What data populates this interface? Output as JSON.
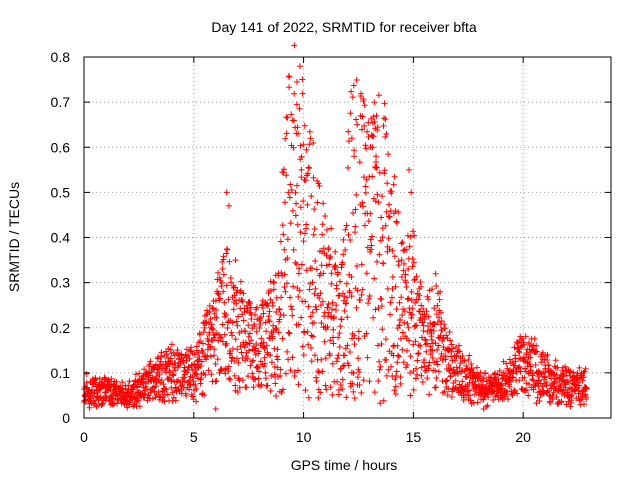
{
  "chart_data": {
    "type": "scatter",
    "title": "Day 141 of 2022, SRMTID for receiver bfta",
    "xlabel": "GPS time / hours",
    "ylabel": "SRMTID / TECUs",
    "xlim": [
      0,
      24
    ],
    "ylim": [
      0,
      0.8
    ],
    "grid": true,
    "x_ticks": [
      0,
      5,
      10,
      15,
      20
    ],
    "x_tick_labels": [
      "0",
      "5",
      "10",
      "15",
      "20"
    ],
    "y_ticks": [
      0,
      0.1,
      0.2,
      0.3,
      0.4,
      0.5,
      0.6,
      0.7,
      0.8
    ],
    "y_tick_labels": [
      "0",
      "0.1",
      "0.2",
      "0.3",
      "0.4",
      "0.5",
      "0.6",
      "0.7",
      "0.8"
    ],
    "marker": "plus",
    "marker_color": "#ff0000",
    "series": [
      {
        "name": "SRMTID",
        "points_description": "Dense scatter from 0 to ~22.9 h; envelope values in TECU",
        "envelope": [
          {
            "x": 0.0,
            "y": 0.06
          },
          {
            "x": 1.0,
            "y": 0.06
          },
          {
            "x": 2.0,
            "y": 0.05
          },
          {
            "x": 3.0,
            "y": 0.08
          },
          {
            "x": 4.0,
            "y": 0.1
          },
          {
            "x": 5.0,
            "y": 0.1
          },
          {
            "x": 5.5,
            "y": 0.15
          },
          {
            "x": 6.5,
            "y": 0.22
          },
          {
            "x": 7.0,
            "y": 0.18
          },
          {
            "x": 8.0,
            "y": 0.15
          },
          {
            "x": 8.8,
            "y": 0.2
          },
          {
            "x": 9.3,
            "y": 0.4
          },
          {
            "x": 9.7,
            "y": 0.5
          },
          {
            "x": 10.2,
            "y": 0.35
          },
          {
            "x": 11.0,
            "y": 0.25
          },
          {
            "x": 11.7,
            "y": 0.2
          },
          {
            "x": 12.3,
            "y": 0.45
          },
          {
            "x": 13.0,
            "y": 0.35
          },
          {
            "x": 13.5,
            "y": 0.4
          },
          {
            "x": 14.0,
            "y": 0.33
          },
          {
            "x": 14.5,
            "y": 0.22
          },
          {
            "x": 15.0,
            "y": 0.25
          },
          {
            "x": 15.5,
            "y": 0.15
          },
          {
            "x": 16.0,
            "y": 0.2
          },
          {
            "x": 16.5,
            "y": 0.12
          },
          {
            "x": 17.0,
            "y": 0.1
          },
          {
            "x": 18.0,
            "y": 0.07
          },
          {
            "x": 19.0,
            "y": 0.07
          },
          {
            "x": 20.0,
            "y": 0.12
          },
          {
            "x": 21.0,
            "y": 0.09
          },
          {
            "x": 22.0,
            "y": 0.07
          },
          {
            "x": 22.9,
            "y": 0.07
          }
        ],
        "spikes": [
          {
            "x": 6.5,
            "y": 0.5
          },
          {
            "x": 6.6,
            "y": 0.47
          },
          {
            "x": 6.9,
            "y": 0.35
          },
          {
            "x": 9.7,
            "y": 0.745
          },
          {
            "x": 9.7,
            "y": 0.695
          },
          {
            "x": 9.75,
            "y": 0.63
          },
          {
            "x": 9.9,
            "y": 0.55
          },
          {
            "x": 12.2,
            "y": 0.62
          },
          {
            "x": 12.3,
            "y": 0.58
          },
          {
            "x": 13.3,
            "y": 0.58
          },
          {
            "x": 14.8,
            "y": 0.55
          },
          {
            "x": 14.9,
            "y": 0.5
          }
        ],
        "lows": [
          {
            "x": 6.0,
            "y": 0.02
          },
          {
            "x": 8.5,
            "y": 0.06
          },
          {
            "x": 11.8,
            "y": 0.115
          },
          {
            "x": 14.2,
            "y": 0.07
          },
          {
            "x": 18.2,
            "y": 0.02
          }
        ]
      }
    ]
  }
}
